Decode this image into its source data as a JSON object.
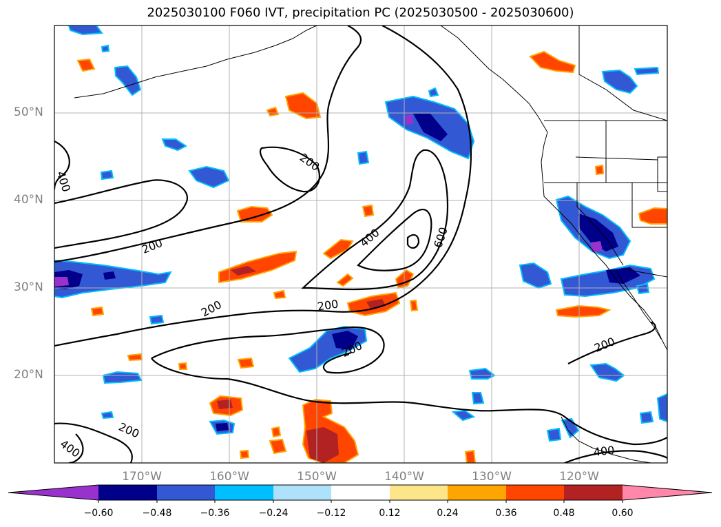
{
  "title": "2025030100 F060 IVT, precipitation PC (2025030500 - 2025030600)",
  "map": {
    "projection": "equirectangular",
    "lon_range": [
      -180,
      -110
    ],
    "lat_range": [
      10,
      60
    ],
    "lat_labels": [
      "50°N",
      "40°N",
      "30°N",
      "20°N"
    ],
    "lon_labels": [
      "170°W",
      "160°W",
      "150°W",
      "140°W",
      "130°W",
      "120°W"
    ],
    "contour_labels": [
      "400",
      "200",
      "200",
      "200",
      "400",
      "600",
      "200",
      "200",
      "200",
      "200",
      "400",
      "400",
      "400"
    ],
    "label_color": "#808080",
    "grid": true
  },
  "colorbar": {
    "ticks": [
      "−0.60",
      "−0.48",
      "−0.36",
      "−0.24",
      "−0.12",
      "0.12",
      "0.24",
      "0.36",
      "0.48",
      "0.60"
    ],
    "colors": [
      "#9932cc",
      "#00008b",
      "#3358d4",
      "#00bfff",
      "#aee1fa",
      "#ffffff",
      "#fde68a",
      "#ffa500",
      "#ff4500",
      "#b22222",
      "#ff88aa"
    ],
    "extend": "both"
  }
}
